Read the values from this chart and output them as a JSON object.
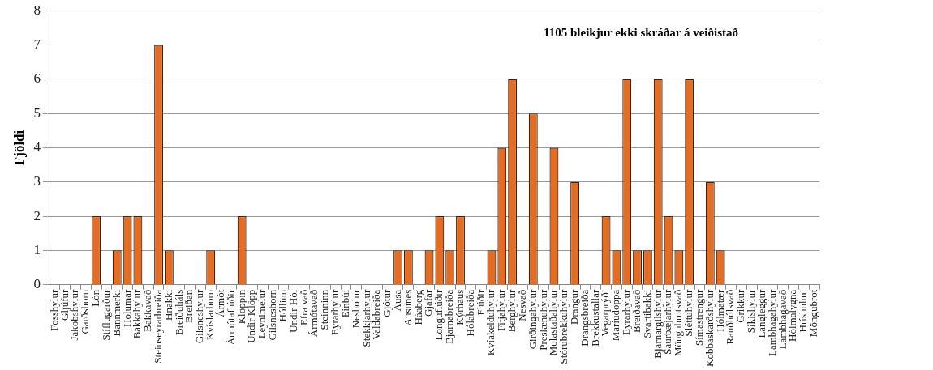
{
  "chart_data": {
    "type": "bar",
    "ylabel": "Fjöldi",
    "annotations": [
      "1105 bleikjur ekki skráðar á veiðistað"
    ],
    "categories": [
      "Fosshylur",
      "Gljúfur",
      "Jakobshylur",
      "Garðshorn",
      "Lón",
      "Stíflugarður",
      "Bannmerki",
      "Holumar",
      "Bakkahylur",
      "Bakkavað",
      "Steinseyrarbreiða",
      "Hnakki",
      "Breiðuháls",
      "Breiðan",
      "Gilsneshylur",
      "Kvíslarhorn",
      "Ármót",
      "Ármótaflúðir",
      "Klöppin",
      "Undir Klöpp",
      "Leynimelur",
      "Gilsneshorn",
      "Hóllinn",
      "Undir Hól",
      "Efra vað",
      "Ármótavað",
      "Steinninn",
      "Eyrarhylur",
      "Einbúi",
      "Nesholur",
      "Stekkjarhylur",
      "Valdabreiða",
      "Gjótur",
      "Ausa",
      "Ausunes",
      "Háaberg",
      "Gjafar",
      "Lönguflúðir",
      "Bjarnabreiða",
      "Kýrhaus",
      "Hólabreiða",
      "Flúðir",
      "Kvíakelduhylur",
      "Fitjahylur",
      "Berghylur",
      "Nesvað",
      "Girðingahylur",
      "Preslænuhylur",
      "Molastaðahylur",
      "Stórubrekkuhylur",
      "Drangur",
      "Drangsbreiða",
      "Brekkustallar",
      "Vegarprýði",
      "Maríudoppa",
      "Eyrarhylur",
      "Breiðavað",
      "Svartibakki",
      "Bjarnargilshylur",
      "Saurbæjarhylur",
      "Möngubrotsvað",
      "Sléttuhylur",
      "Símastrengur",
      "Kobbaskarðshylur",
      "Hólmatær",
      "Rauðhólsvað",
      "Grikkur",
      "Síkishylur",
      "Langleggur",
      "Lambhagahylur",
      "Lambhagavað",
      "Hólmalygna",
      "Hrísholmi",
      "Möngubrot"
    ],
    "values": [
      0,
      0,
      0,
      0,
      2,
      0,
      1,
      2,
      2,
      0,
      7,
      1,
      0,
      0,
      0,
      1,
      0,
      0,
      2,
      0,
      0,
      0,
      0,
      0,
      0,
      0,
      0,
      0,
      0,
      0,
      0,
      0,
      0,
      1,
      1,
      0,
      1,
      2,
      1,
      2,
      0,
      0,
      1,
      4,
      6,
      0,
      5,
      0,
      4,
      0,
      3,
      0,
      0,
      2,
      1,
      6,
      1,
      1,
      6,
      2,
      1,
      6,
      0,
      3,
      1,
      0,
      0,
      0,
      0,
      0,
      0,
      0,
      0,
      0
    ],
    "color": "#e46c23",
    "ylim": [
      0,
      8
    ],
    "yticks": [
      0,
      1,
      2,
      3,
      4,
      5,
      6,
      7,
      8
    ],
    "grid": "y"
  }
}
